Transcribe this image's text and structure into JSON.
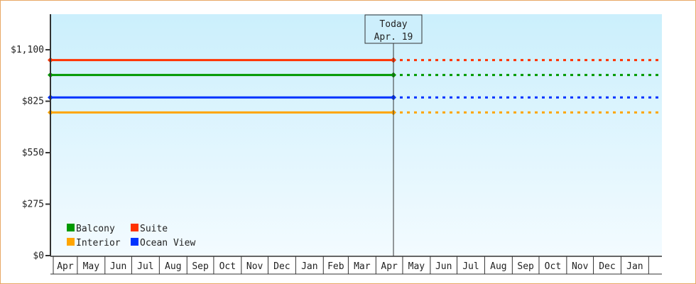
{
  "chart_data": {
    "type": "line",
    "title": "",
    "xlabel": "",
    "ylabel": "",
    "ylim": [
      0,
      1290
    ],
    "yticks": [
      0,
      275,
      550,
      825,
      1100
    ],
    "ytick_labels": [
      "$0",
      "$275",
      "$550",
      "$825",
      "$1,100"
    ],
    "x_tick_labels": [
      "Apr",
      "May",
      "Jun",
      "Jul",
      "Aug",
      "Sep",
      "Oct",
      "Nov",
      "Dec",
      "Jan",
      "Feb",
      "Mar",
      "Apr",
      "May",
      "Jun",
      "Jul",
      "Aug",
      "Sep",
      "Oct",
      "Nov",
      "Dec",
      "Jan"
    ],
    "today": {
      "label": "Today",
      "date": "Apr. 19"
    },
    "grid": false,
    "legend_position": "bottom-left",
    "series": [
      {
        "name": "Balcony",
        "color": "#009900",
        "value": 965
      },
      {
        "name": "Suite",
        "color": "#ff3300",
        "value": 1045
      },
      {
        "name": "Interior",
        "color": "#ffa500",
        "value": 765
      },
      {
        "name": "Ocean View",
        "color": "#0033ff",
        "value": 845
      }
    ],
    "note_style": "solid up to today, dotted projection after today"
  }
}
